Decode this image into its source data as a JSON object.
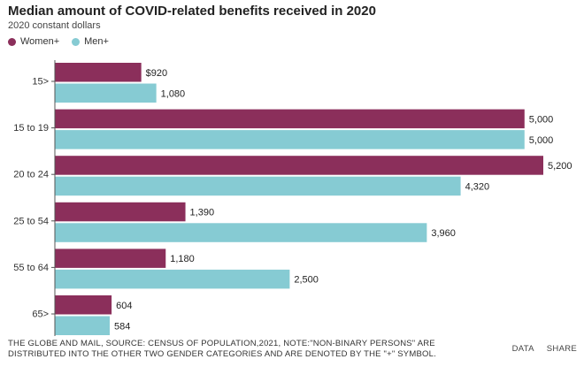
{
  "chart_data": {
    "type": "bar",
    "orientation": "horizontal",
    "title": "Median amount of COVID-related benefits received in 2020",
    "subtitle": "2020 constant dollars",
    "categories": [
      "15>",
      "15 to 19",
      "20 to 24",
      "25 to 54",
      "55 to 64",
      "65>"
    ],
    "series": [
      {
        "name": "Women+",
        "color": "#8b2f5b",
        "values": [
          920,
          5000,
          5200,
          1390,
          1180,
          604
        ],
        "labels": [
          "$920",
          "5,000",
          "5,200",
          "1,390",
          "1,180",
          "604"
        ]
      },
      {
        "name": "Men+",
        "color": "#86cbd3",
        "values": [
          1080,
          5000,
          4320,
          3960,
          2500,
          584
        ],
        "labels": [
          "1,080",
          "5,000",
          "4,320",
          "3,960",
          "2,500",
          "584"
        ]
      }
    ],
    "xlim": [
      0,
      5200
    ],
    "legend_position": "top-left",
    "grid": false
  },
  "footnote": {
    "line1": "THE GLOBE AND MAIL, SOURCE: CENSUS OF POPULATION,2021, NOTE:\"NON-BINARY PERSONS\" ARE",
    "line2": "DISTRIBUTED INTO THE OTHER TWO GENDER CATEGORIES AND ARE DENOTED BY THE \"+\" SYMBOL."
  },
  "actions": {
    "data_label": "DATA",
    "share_label": "SHARE"
  }
}
